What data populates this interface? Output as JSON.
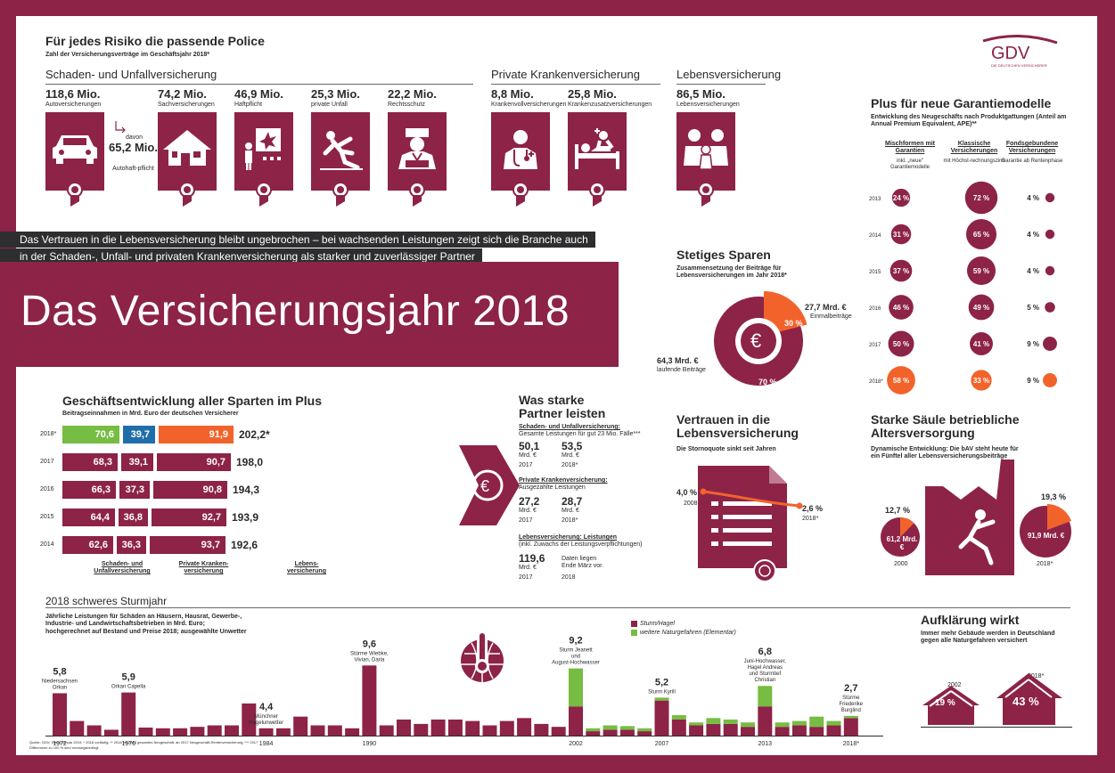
{
  "header": {
    "title": "Für jedes Risiko die passende Police",
    "subtitle": "Zahl der Versicherungsverträge im Geschäftsjahr 2018*",
    "logo": "GDV",
    "logo_sub": "DIE DEUTSCHEN VERSICHERER"
  },
  "sections": {
    "sach": "Schaden- und Unfallversicherung",
    "pkv": "Private Krankenversicherung",
    "leben": "Lebensversicherung"
  },
  "policies": [
    {
      "value": "118,6 Mio.",
      "label": "Autoversicherungen",
      "icon": "car-icon"
    },
    {
      "value": "74,2 Mio.",
      "label": "Sachversicherungen",
      "icon": "house-icon"
    },
    {
      "value": "46,9 Mio.",
      "label": "Haftpflicht",
      "icon": "liability-icon"
    },
    {
      "value": "25,3 Mio.",
      "label": "private Unfall",
      "icon": "fall-icon"
    },
    {
      "value": "22,2 Mio.",
      "label": "Rechtsschutz",
      "icon": "judge-icon"
    },
    {
      "value": "8,8 Mio.",
      "label": "Krankenvollversicherungen",
      "icon": "doctor-icon"
    },
    {
      "value": "25,8 Mio.",
      "label": "Krankenzusatzversicherungen",
      "icon": "patient-icon"
    },
    {
      "value": "86,5 Mio.",
      "label": "Lebensversicherungen",
      "icon": "family-icon"
    }
  ],
  "car_sub": {
    "davon": "davon",
    "value": "65,2 Mio.",
    "label": "Autohaft-pflicht"
  },
  "banner": {
    "line1": "Das Vertrauen in die Lebensversicherung bleibt ungebrochen – bei wachsenden Leistungen zeigt sich die Branche auch",
    "line2": "in der Schaden-, Unfall- und privaten Krankenversicherung als starker und zuverlässiger Partner",
    "main_title": "Das Versicherungsjahr 2018"
  },
  "garantie": {
    "title": "Plus für neue Garantiemodelle",
    "subtitle": "Entwicklung des Neugeschäfts nach Produktgattungen (Anteil am Annual Premium Equivalent, APE)**",
    "col_heads": [
      "Mischformen mit Garantien",
      "Klassische Versicherungen",
      "Fondsgebundene Versicherungen"
    ],
    "col_subs": [
      "inkl. „neue\" Garantiemodelle",
      "mit Höchst-rechnungszins",
      "Garantie ab Rentenphase"
    ],
    "years": [
      "2013",
      "2014",
      "2015",
      "2016",
      "2017",
      "2018*"
    ],
    "misch": [
      "24 %",
      "31 %",
      "37 %",
      "46 %",
      "50 %",
      "58 %"
    ],
    "klass": [
      "72 %",
      "65 %",
      "59 %",
      "49 %",
      "41 %",
      "33 %"
    ],
    "fonds": [
      "4 %",
      "4 %",
      "4 %",
      "5 %",
      "9 %",
      "9 %"
    ],
    "misch_vals": [
      24,
      31,
      37,
      46,
      50,
      58
    ],
    "klass_vals": [
      72,
      65,
      59,
      49,
      41,
      33
    ],
    "fonds_vals": [
      4,
      4,
      4,
      5,
      9,
      9
    ],
    "highlight_color": "#f2632b"
  },
  "sparen": {
    "title": "Stetiges Sparen",
    "subtitle": "Zusammensetzung der Beiträge für Lebensversicherungen im Jahr 2018*",
    "einmal_value": "27,7 Mrd. €",
    "einmal_label": "Einmalbeiträge",
    "lauf_value": "64,3 Mrd. €",
    "lauf_label": "laufende Beiträge",
    "pct_einmal": "30 %",
    "pct_lauf": "70 %"
  },
  "geschaeft": {
    "title": "Geschäftsentwicklung aller Sparten im Plus",
    "subtitle": "Beitragseinnahmen in Mrd. Euro der deutschen Versicherer",
    "legend": [
      "Schaden- und Unfallversicherung",
      "Private Kranken-versicherung",
      "Lebens-versicherung"
    ]
  },
  "chart_data": [
    {
      "type": "bar",
      "title": "Geschäftsentwicklung aller Sparten im Plus",
      "categories": [
        "2018*",
        "2017",
        "2016",
        "2015",
        "2014"
      ],
      "series": [
        {
          "name": "Schaden- und Unfallversicherung",
          "values": [
            70.6,
            68.3,
            66.3,
            64.4,
            62.6
          ],
          "labels": [
            "70,6",
            "68,3",
            "66,3",
            "64,4",
            "62,6"
          ],
          "color_2018": "#77bc43"
        },
        {
          "name": "Private Krankenversicherung",
          "values": [
            39.7,
            39.1,
            37.3,
            36.8,
            36.3
          ],
          "labels": [
            "39,7",
            "39,1",
            "37,3",
            "36,8",
            "36,3"
          ],
          "color_2018": "#1f6eaa"
        },
        {
          "name": "Lebensversicherung",
          "values": [
            91.9,
            90.7,
            90.8,
            92.7,
            93.7
          ],
          "labels": [
            "91,9",
            "90,7",
            "90,8",
            "92,7",
            "93,7"
          ],
          "color_2018": "#f2632b"
        }
      ],
      "totals": [
        "202,2*",
        "198,0",
        "194,3",
        "193,9",
        "192,6"
      ],
      "base_color": "#8d2347"
    },
    {
      "type": "bar",
      "title": "2018 schweres Sturmjahr",
      "subtitle": "Jährliche Leistungen für Schäden an Häusern, Hausrat, Gewerbe-, Industrie- und Landwirtschaftsbetrieben in Mrd. Euro; hochgerechnet auf Bestand und Preise 2018; ausgewählte Unwetter",
      "x": [
        1972,
        1973,
        1974,
        1975,
        1976,
        1977,
        1978,
        1979,
        1980,
        1981,
        1982,
        1983,
        1984,
        1985,
        1986,
        1987,
        1988,
        1989,
        1990,
        1991,
        1992,
        1993,
        1994,
        1995,
        1996,
        1997,
        1998,
        1999,
        2000,
        2001,
        2002,
        2003,
        2004,
        2005,
        2006,
        2007,
        2008,
        2009,
        2010,
        2011,
        2012,
        2013,
        2014,
        2015,
        2016,
        2017,
        2018
      ],
      "series": [
        {
          "name": "Sturm/Hagel",
          "values": [
            5.8,
            2.0,
            1.4,
            0.8,
            5.9,
            1.1,
            1.0,
            1.0,
            1.2,
            1.4,
            1.4,
            4.4,
            1.0,
            1.0,
            2.6,
            1.4,
            1.4,
            1.0,
            9.6,
            1.4,
            2.2,
            1.6,
            2.2,
            2.2,
            2.0,
            1.4,
            2.0,
            2.4,
            1.6,
            1.2,
            4.0,
            0.6,
            0.8,
            0.8,
            0.6,
            4.8,
            2.2,
            1.4,
            1.6,
            1.6,
            1.2,
            4.0,
            1.2,
            1.4,
            1.2,
            1.4,
            2.4
          ]
        },
        {
          "name": "weitere Naturgefahren (Elementar)",
          "values": [
            0,
            0,
            0,
            0,
            0,
            0,
            0,
            0,
            0,
            0,
            0,
            0,
            0,
            0,
            0,
            0,
            0,
            0,
            0,
            0,
            0,
            0,
            0,
            0,
            0,
            0,
            0,
            0,
            0,
            0,
            5.2,
            0.4,
            0.6,
            0.5,
            0.4,
            0.4,
            0.6,
            0.4,
            0.8,
            0.6,
            0.6,
            2.8,
            0.6,
            0.6,
            1.4,
            0.6,
            0.3
          ]
        }
      ],
      "x_tick_labels": [
        "1972",
        "1976",
        "1984",
        "1990",
        "2002",
        "2007",
        "2013",
        "2018*"
      ],
      "annotations": [
        {
          "value": "5,8",
          "label": "Niedersachsen Orkan"
        },
        {
          "value": "5,9",
          "label": "Orkan Capella"
        },
        {
          "value": "4,4",
          "label": "Münchner Hagelunwetter"
        },
        {
          "value": "9,6",
          "label": "Stürme Wiebke, Vivian, Daria"
        },
        {
          "value": "9,2",
          "label": "Sturm Jeanett und August-Hochwasser"
        },
        {
          "value": "5,2",
          "label": "Sturm Kyrill"
        },
        {
          "value": "6,8",
          "label": "Juni-Hochwasser, Hagel Andreas und Sturmtief Christian"
        },
        {
          "value": "2,7",
          "label": "Stürme Friederike Burglind"
        }
      ],
      "colors": {
        "sturm": "#8d2347",
        "elementar": "#77bc43"
      }
    }
  ],
  "partner": {
    "title": "Was starke Partner leisten",
    "sach_head": "Schaden- und Unfallversicherung:",
    "sach_sub": "Gesamte Leistungen für gut 23 Mio. Fälle***",
    "sach_vals": [
      "50,1",
      "53,5"
    ],
    "pkv_head": "Private Krankenversicherung:",
    "pkv_sub": "Ausgezahlte Leistungen",
    "pkv_vals": [
      "27,2",
      "28,7"
    ],
    "leben_head": "Lebensversicherung: Leistungen",
    "leben_sub": "(inkl. Zuwachs der Leistungsverpflichtungen)",
    "leben_val": "119,6",
    "leben_note": "Daten liegen Ende März vor.",
    "unit": "Mrd. €",
    "y2017": "2017",
    "y2018": "2018*",
    "y2018b": "2018"
  },
  "vertrauen": {
    "title": "Vertrauen in die Lebensversicherung",
    "subtitle": "Die Stornoquote sinkt seit Jahren",
    "v2008": "4,0 %",
    "y2008": "2008",
    "v2018": "2,6 %",
    "y2018": "2018*"
  },
  "bav": {
    "title": "Starke Säule betriebliche Altersversorgung",
    "subtitle": "Dynamische Entwicklung: Die bAV steht heute für ein Fünftel aller Lebensversicherungsbeiträge",
    "p2000": "12,7 %",
    "v2000": "61,2 Mrd. €",
    "y2000": "2000",
    "p2018": "19,3 %",
    "v2018": "91,9 Mrd. €",
    "y2018": "2018*"
  },
  "sturm": {
    "title": "2018 schweres Sturmjahr",
    "subtitle": "Jährliche Leistungen für Schäden an Häusern, Hausrat, Gewerbe-, Industrie- und Landwirtschaftsbetrieben in Mrd. Euro; hochgerechnet auf Bestand und Preise 2018; ausgewählte Unwetter",
    "legend_sturm": "Sturm/Hagel",
    "legend_elem": "weitere Naturgefahren (Elementar)"
  },
  "aufklaerung": {
    "title": "Aufklärung wirkt",
    "subtitle": "Immer mehr Gebäude werden in Deutschland gegen alle Naturgefahren versichert",
    "y2002": "2002",
    "p2002": "19 %",
    "y2018": "2018*",
    "p2018": "43 %"
  },
  "footer": {
    "source": "Quelle: GDV; Stand Januar 2019; * 2018 vorläufig; ** 2018 bis 2018 gesamtes Neugeschäft, ab 2017 Neugeschäft-Rentenversicherung; *** 2017",
    "note": "Differenzen zu 100 % sind rundungsbedingt"
  }
}
